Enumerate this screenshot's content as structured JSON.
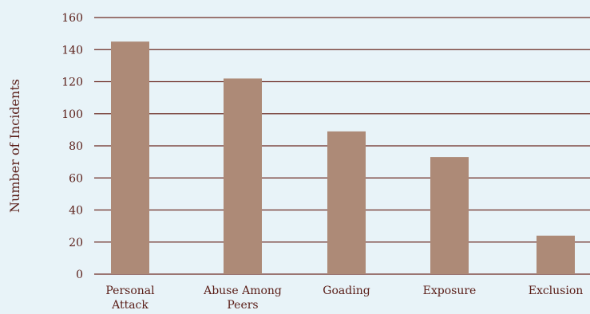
{
  "chart_data": {
    "type": "bar",
    "categories": [
      [
        "Personal",
        "Attack"
      ],
      [
        "Abuse Among",
        "Peers"
      ],
      [
        "Goading"
      ],
      [
        "Exposure"
      ],
      [
        "Exclusion"
      ]
    ],
    "values": [
      145,
      122,
      89,
      73,
      24
    ],
    "ylabel": "Number of Incidents",
    "xlabel": "",
    "title": "",
    "ylim": [
      0,
      160
    ],
    "yticks": [
      0,
      20,
      40,
      60,
      80,
      100,
      120,
      140,
      160
    ],
    "grid": true,
    "legend": "none",
    "colors": {
      "bar": "#ad8a77",
      "gridline": "#6b2a22",
      "text": "#5a1e18",
      "background": "#e8f3f8"
    }
  }
}
